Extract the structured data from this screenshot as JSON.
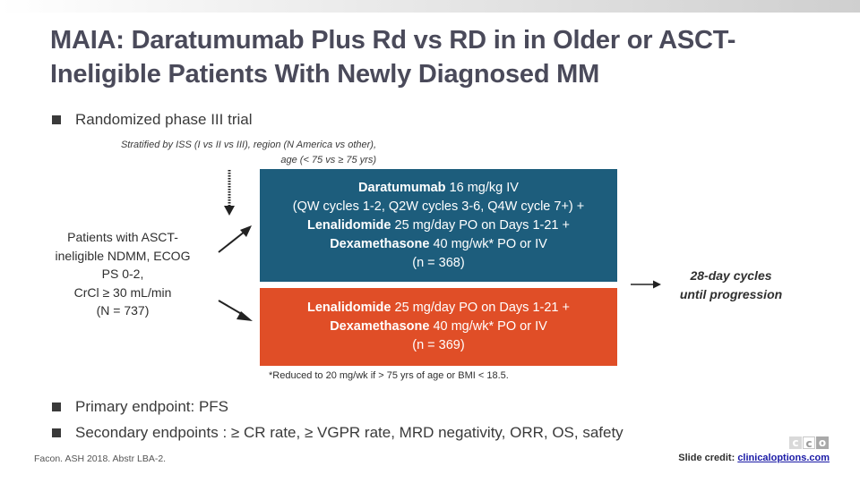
{
  "title_line1": "MAIA: Daratumumab Plus Rd vs RD in in Older or ASCT-",
  "title_line2": "Ineligible Patients With Newly Diagnosed MM",
  "bullets": {
    "design": "Randomized phase III trial",
    "primary": "Primary endpoint: PFS",
    "secondary": "Secondary endpoints : ≥ CR rate, ≥ VGPR rate, MRD negativity, ORR, OS, safety"
  },
  "stratification": {
    "line1": "Stratified by ISS (I vs II vs III), region (N America vs other),",
    "line2": "age (< 75 vs ≥ 75 yrs)"
  },
  "patients": {
    "line1": "Patients with ASCT-",
    "line2": "ineligible NDMM, ECOG",
    "line3": "PS 0-2,",
    "line4": "CrCl ≥ 30 mL/min",
    "line5": "(N = 737)"
  },
  "arm_dara": {
    "drug1": "Daratumumab",
    "drug1_dose": " 16 mg/kg IV",
    "schedule": "(QW cycles 1-2, Q2W cycles 3-6, Q4W cycle 7+) +",
    "drug2": "Lenalidomide",
    "drug2_dose": " 25 mg/day PO on Days 1-21 +",
    "drug3": "Dexamethasone",
    "drug3_dose": " 40 mg/wk* PO or IV",
    "n": "(n = 368)"
  },
  "arm_rd": {
    "drug1": "Lenalidomide",
    "drug1_dose": " 25 mg/day PO on Days 1-21 +",
    "drug2": "Dexamethasone",
    "drug2_dose": " 40 mg/wk* PO or IV",
    "n": "(n = 369)"
  },
  "cycles": {
    "line1": "28-day cycles",
    "line2": "until progression"
  },
  "footnote": "*Reduced to 20 mg/wk if > 75 yrs of age or BMI < 18.5.",
  "source": "Facon. ASH 2018. Abstr LBA-2.",
  "credit": {
    "label": "Slide credit: ",
    "link": "clinicaloptions.com"
  },
  "logo": {
    "c1": "c",
    "c2": "c",
    "c3": "o"
  },
  "colors": {
    "dara_arm": "#1d5d7c",
    "rd_arm": "#e04e27",
    "title": "#4a4a5a"
  }
}
